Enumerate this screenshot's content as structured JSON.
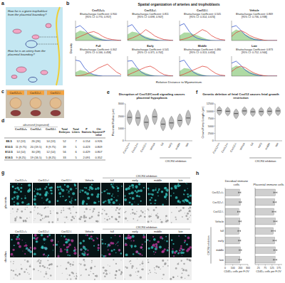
{
  "figure": {
    "panel_letters": [
      "a",
      "b",
      "c",
      "d",
      "e",
      "f",
      "g",
      "h"
    ],
    "a": {
      "questions": [
        "How far is a given trophoblast from the placental boundary?",
        "How far is an artery from the placental boundary?"
      ]
    },
    "b": {
      "title": "Spatial organization of arteries and trophoblasts",
      "x_label": "Relative Distance to Myometrium",
      "y_label": "Density"
    },
    "c": {
      "labels": [
        "Cxcl12+/+",
        "Cxcl12+/-",
        "Cxcl12-/-"
      ]
    },
    "d": {
      "header": "observed (expected)",
      "columns": [
        "Cxcl12+/+",
        "Cxcl12+/-",
        "Cxcl12-/-",
        "Total Embryos",
        "Total Litters",
        "P Statistic",
        "Chi Squared P value"
      ],
      "rows": [
        [
          "E8.5",
          "12 (13)",
          "26 (26)",
          "14 (13)",
          52,
          7,
          0.154,
          0.926
        ],
        [
          "E10.5",
          "11 (9.75)",
          "20 (19.5)",
          "8 (9.75)",
          39,
          5,
          0.423,
          0.809
        ],
        [
          "E12.5",
          "14 (14)",
          "30 (28)",
          "12 (14)",
          56,
          6,
          0.429,
          0.807
        ],
        [
          "E18.5",
          "9 (8.25)",
          "19 (16.5)",
          "5 (8.25)",
          33,
          5,
          2.091,
          0.352
        ]
      ]
    },
    "g": {
      "rows": [
        "placenta",
        "decidua"
      ],
      "columns": [
        "Cxcl12+/+",
        "Cxcl12+/-",
        "Cxcl12-/-",
        "Vehicle",
        "full",
        "early",
        "middle",
        "late"
      ],
      "group": {
        "text": "CXCR4 inhibition",
        "categories": [
          "full",
          "early",
          "middle",
          "late"
        ]
      }
    }
  },
  "chart_data": [
    {
      "type": "density",
      "title": "Cxcl12+/+",
      "subtitle": "Bhattacharyya Coefficient: 0.900",
      "annotation": "[95% CI: 0.770, 0.957]",
      "x": [
        0,
        0.1,
        0.2,
        0.3,
        0.4,
        0.5,
        0.6,
        0.7,
        0.8,
        0.9,
        1
      ],
      "xlim": [
        0,
        1
      ],
      "ylim": [
        0,
        4
      ],
      "tick_labels": false,
      "series": [
        {
          "type": "area",
          "color": "#6dbb5a",
          "values": [
            1.5,
            2.0,
            1.8,
            1.4,
            1.0,
            0.6,
            0.3,
            0.1,
            0,
            0,
            0
          ]
        },
        {
          "type": "line",
          "color": "#3355cc",
          "values": [
            2.6,
            3.0,
            2.2,
            1.2,
            0.6,
            0.3,
            0.1,
            0.05,
            0,
            0,
            0
          ]
        },
        {
          "type": "line",
          "color": "#e0443a",
          "values": [
            0.4,
            0.8,
            1.2,
            1.6,
            1.8,
            1.4,
            0.8,
            0.4,
            0.2,
            0.1,
            0
          ]
        }
      ]
    },
    {
      "type": "density",
      "title": "Cxcl12+/-",
      "subtitle": "Bhattacharyya Coefficient: 0.811",
      "annotation": "[95% CI: 0.698, 0.907]",
      "x": [
        0,
        0.1,
        0.2,
        0.3,
        0.4,
        0.5,
        0.6,
        0.7,
        0.8,
        0.9,
        1
      ],
      "xlim": [
        0,
        1
      ],
      "ylim": [
        0,
        4
      ],
      "tick_labels": false,
      "series": [
        {
          "type": "area",
          "color": "#6dbb5a",
          "values": [
            1.2,
            1.8,
            1.6,
            1.2,
            0.8,
            0.5,
            0.3,
            0.1,
            0,
            0,
            0
          ]
        },
        {
          "type": "line",
          "color": "#3355cc",
          "values": [
            2.8,
            3.2,
            2.0,
            1.0,
            0.5,
            0.2,
            0.1,
            0,
            0,
            0,
            0
          ]
        },
        {
          "type": "line",
          "color": "#e0443a",
          "values": [
            0.2,
            0.5,
            0.9,
            1.4,
            2.2,
            1.6,
            0.9,
            0.5,
            0.2,
            0.1,
            0
          ]
        }
      ]
    },
    {
      "type": "density",
      "title": "Cxcl12-/-",
      "subtitle": "Bhattacharyya Coefficient: 0.505",
      "annotation": "[95% CI: 0.314, 0.674]",
      "x": [
        0,
        0.1,
        0.2,
        0.3,
        0.4,
        0.5,
        0.6,
        0.7,
        0.8,
        0.9,
        1
      ],
      "xlim": [
        0,
        1
      ],
      "ylim": [
        0,
        4
      ],
      "tick_labels": false,
      "series": [
        {
          "type": "area",
          "color": "#6dbb5a",
          "values": [
            1.0,
            1.6,
            1.6,
            1.3,
            1.0,
            0.6,
            0.3,
            0.1,
            0,
            0,
            0
          ]
        },
        {
          "type": "line",
          "color": "#3355cc",
          "values": [
            3.0,
            3.4,
            2.0,
            0.9,
            0.4,
            0.2,
            0.1,
            0,
            0,
            0,
            0
          ]
        },
        {
          "type": "line",
          "color": "#e0443a",
          "values": [
            0.1,
            0.3,
            0.6,
            1.0,
            1.6,
            2.2,
            1.8,
            1.0,
            0.5,
            0.2,
            0.1
          ]
        }
      ]
    },
    {
      "type": "density",
      "title": "Vehicle",
      "subtitle": "Bhattacharyya Coefficient: 0.869",
      "annotation": "[95% CI: 0.736, 0.938]",
      "x": [
        0,
        0.1,
        0.2,
        0.3,
        0.4,
        0.5,
        0.6,
        0.7,
        0.8,
        0.9,
        1
      ],
      "xlim": [
        0,
        1
      ],
      "ylim": [
        0,
        4
      ],
      "tick_labels": false,
      "series": [
        {
          "type": "area",
          "color": "#6dbb5a",
          "values": [
            1.6,
            2.2,
            1.9,
            1.3,
            0.8,
            0.4,
            0.2,
            0.1,
            0,
            0,
            0
          ]
        },
        {
          "type": "line",
          "color": "#3355cc",
          "values": [
            2.7,
            3.0,
            2.1,
            1.1,
            0.5,
            0.2,
            0.1,
            0,
            0,
            0,
            0
          ]
        },
        {
          "type": "line",
          "color": "#e0443a",
          "values": [
            0.8,
            1.6,
            2.0,
            1.6,
            1.0,
            0.6,
            0.3,
            0.1,
            0,
            0,
            0
          ]
        }
      ]
    },
    {
      "type": "density",
      "title": "Full",
      "subtitle": "Bhattacharyya Coefficient: 0.302",
      "annotation": "[95% CI: 0.166, 0.458]",
      "x": [
        0,
        0.1,
        0.2,
        0.3,
        0.4,
        0.5,
        0.6,
        0.7,
        0.8,
        0.9,
        1
      ],
      "xlim": [
        0,
        1
      ],
      "ylim": [
        0,
        4
      ],
      "tick_labels": false,
      "series": [
        {
          "type": "area",
          "color": "#6dbb5a",
          "values": [
            0.8,
            1.2,
            1.0,
            0.6,
            0.3,
            0.1,
            0,
            0,
            0,
            0,
            0
          ]
        },
        {
          "type": "line",
          "color": "#3355cc",
          "values": [
            3.2,
            3.0,
            1.6,
            0.7,
            0.3,
            0.1,
            0,
            0,
            0,
            0,
            0
          ]
        },
        {
          "type": "line",
          "color": "#e0443a",
          "values": [
            0,
            0.1,
            0.3,
            0.6,
            1.0,
            1.6,
            2.0,
            2.4,
            1.6,
            0.8,
            0.3
          ]
        }
      ]
    },
    {
      "type": "density",
      "title": "Early",
      "subtitle": "Bhattacharyya Coefficient: 0.541",
      "annotation": "[95% CI: 0.371, 0.702]",
      "x": [
        0,
        0.1,
        0.2,
        0.3,
        0.4,
        0.5,
        0.6,
        0.7,
        0.8,
        0.9,
        1
      ],
      "xlim": [
        0,
        1
      ],
      "ylim": [
        0,
        4
      ],
      "tick_labels": false,
      "series": [
        {
          "type": "area",
          "color": "#6dbb5a",
          "values": [
            1.2,
            1.8,
            1.6,
            1.0,
            0.6,
            0.3,
            0.1,
            0,
            0,
            0,
            0
          ]
        },
        {
          "type": "line",
          "color": "#3355cc",
          "values": [
            3.0,
            3.1,
            1.8,
            0.8,
            0.3,
            0.1,
            0,
            0,
            0,
            0,
            0
          ]
        },
        {
          "type": "line",
          "color": "#e0443a",
          "values": [
            0.2,
            0.6,
            1.0,
            1.4,
            1.8,
            2.0,
            1.5,
            0.8,
            0.3,
            0.1,
            0
          ]
        }
      ]
    },
    {
      "type": "density",
      "title": "Middle",
      "subtitle": "Bhattacharyya Coefficient: 0.480",
      "annotation": "[95% CI: 0.313, 0.653]",
      "x": [
        0,
        0.1,
        0.2,
        0.3,
        0.4,
        0.5,
        0.6,
        0.7,
        0.8,
        0.9,
        1
      ],
      "xlim": [
        0,
        1
      ],
      "ylim": [
        0,
        4
      ],
      "tick_labels": false,
      "series": [
        {
          "type": "area",
          "color": "#6dbb5a",
          "values": [
            1.0,
            1.6,
            1.5,
            1.0,
            0.6,
            0.3,
            0.1,
            0,
            0,
            0,
            0
          ]
        },
        {
          "type": "line",
          "color": "#3355cc",
          "values": [
            2.9,
            3.2,
            1.9,
            0.8,
            0.3,
            0.1,
            0,
            0,
            0,
            0,
            0
          ]
        },
        {
          "type": "line",
          "color": "#e0443a",
          "values": [
            0.1,
            0.4,
            0.8,
            1.2,
            1.6,
            2.0,
            1.8,
            1.1,
            0.5,
            0.2,
            0.1
          ]
        }
      ]
    },
    {
      "type": "density",
      "title": "Late",
      "subtitle": "Bhattacharyya Coefficient: 0.873",
      "annotation": "[95% CI: 0.752, 0.944]",
      "x": [
        0,
        0.1,
        0.2,
        0.3,
        0.4,
        0.5,
        0.6,
        0.7,
        0.8,
        0.9,
        1
      ],
      "xlim": [
        0,
        1
      ],
      "ylim": [
        0,
        4
      ],
      "tick_labels": false,
      "series": [
        {
          "type": "area",
          "color": "#6dbb5a",
          "values": [
            1.6,
            2.1,
            1.9,
            1.4,
            0.9,
            0.5,
            0.2,
            0.1,
            0,
            0,
            0
          ]
        },
        {
          "type": "line",
          "color": "#3355cc",
          "values": [
            2.6,
            3.0,
            2.2,
            1.2,
            0.6,
            0.3,
            0.1,
            0,
            0,
            0,
            0
          ]
        },
        {
          "type": "line",
          "color": "#e0443a",
          "values": [
            0.9,
            1.6,
            2.0,
            1.7,
            1.1,
            0.6,
            0.3,
            0.1,
            0,
            0,
            0
          ]
        }
      ]
    },
    {
      "type": "violin",
      "title": "Disruption of Cxcl12/Cxcr4 signaling causes placental hypoplasia",
      "y_label": "Placental Radius (μm)",
      "categories": [
        "Cxcl12+/+",
        "Cxcl12+/-",
        "Cxcl12-/-",
        "Vehicle",
        "full",
        "early",
        "middle",
        "late"
      ],
      "values": [
        1900,
        1850,
        1500,
        1950,
        1350,
        1450,
        1650,
        1850
      ],
      "low": [
        1300,
        1200,
        900,
        1300,
        800,
        900,
        1100,
        1250
      ],
      "high": [
        2500,
        2500,
        2100,
        2600,
        1900,
        2000,
        2200,
        2500
      ],
      "ylim": [
        0,
        3000
      ],
      "yticks": [
        0,
        1000,
        2000,
        3000
      ],
      "color": "#bdbdbd",
      "annotation": {
        "text": "CXCR4 inhibition",
        "categories": [
          "full",
          "early",
          "middle",
          "late"
        ]
      }
    },
    {
      "type": "violin",
      "title": "Genetic deletion of fetal Cxcl12 causes fetal growth restriction",
      "y_label": "Crown-Rump Length (μm)",
      "categories": [
        "Cxcl12+/+",
        "Cxcl12+/-",
        "Cxcl12-/-",
        "Vehicle",
        "full",
        "early",
        "middle",
        "late"
      ],
      "values": [
        10200,
        10000,
        9200,
        10100,
        9800,
        9900,
        10000,
        10100
      ],
      "low": [
        8600,
        8400,
        7400,
        8500,
        8200,
        8300,
        8400,
        8500
      ],
      "high": [
        11600,
        11400,
        10800,
        11500,
        11200,
        11300,
        11400,
        11500
      ],
      "ylim": [
        0,
        12500
      ],
      "yticks": [
        0,
        2500,
        5000,
        7500,
        10000,
        12500
      ],
      "color": "#bdbdbd",
      "annotation": {
        "text": "CXCR4 inhibition",
        "categories": [
          "full",
          "early",
          "middle",
          "late"
        ]
      }
    },
    {
      "type": "bar",
      "orientation": "horizontal",
      "title": "Decidual immune cells",
      "x_label": "CD45+ cells per F.OV",
      "categories": [
        "Cxcl12+/+",
        "Cxcl12+/-",
        "Cxcl12-/-",
        "Vehicle",
        "full",
        "early",
        "middle",
        "late"
      ],
      "values": [
        190,
        200,
        180,
        195,
        185,
        190,
        200,
        195
      ],
      "errors": [
        15,
        14,
        16,
        15,
        17,
        14,
        15,
        16
      ],
      "xlim": [
        0,
        300
      ],
      "xticks": [
        0,
        100,
        200,
        300
      ],
      "color": "#cfcfcf",
      "annotation": {
        "text": "CXCR4 inhibition",
        "categories": [
          "full",
          "early",
          "middle",
          "late"
        ]
      }
    },
    {
      "type": "bar",
      "orientation": "horizontal",
      "title": "Placental immune cells",
      "x_label": "CD45+ cells per F.OV",
      "categories": [
        null,
        null,
        null,
        null,
        null,
        null,
        null,
        null
      ],
      "values": [
        150,
        145,
        140,
        150,
        135,
        145,
        150,
        148
      ],
      "errors": [
        12,
        11,
        13,
        12,
        14,
        12,
        11,
        12
      ],
      "xlim": [
        0,
        200
      ],
      "xticks": [
        25,
        75,
        125,
        175
      ],
      "color": "#cfcfcf",
      "tick_labels": "x"
    }
  ]
}
